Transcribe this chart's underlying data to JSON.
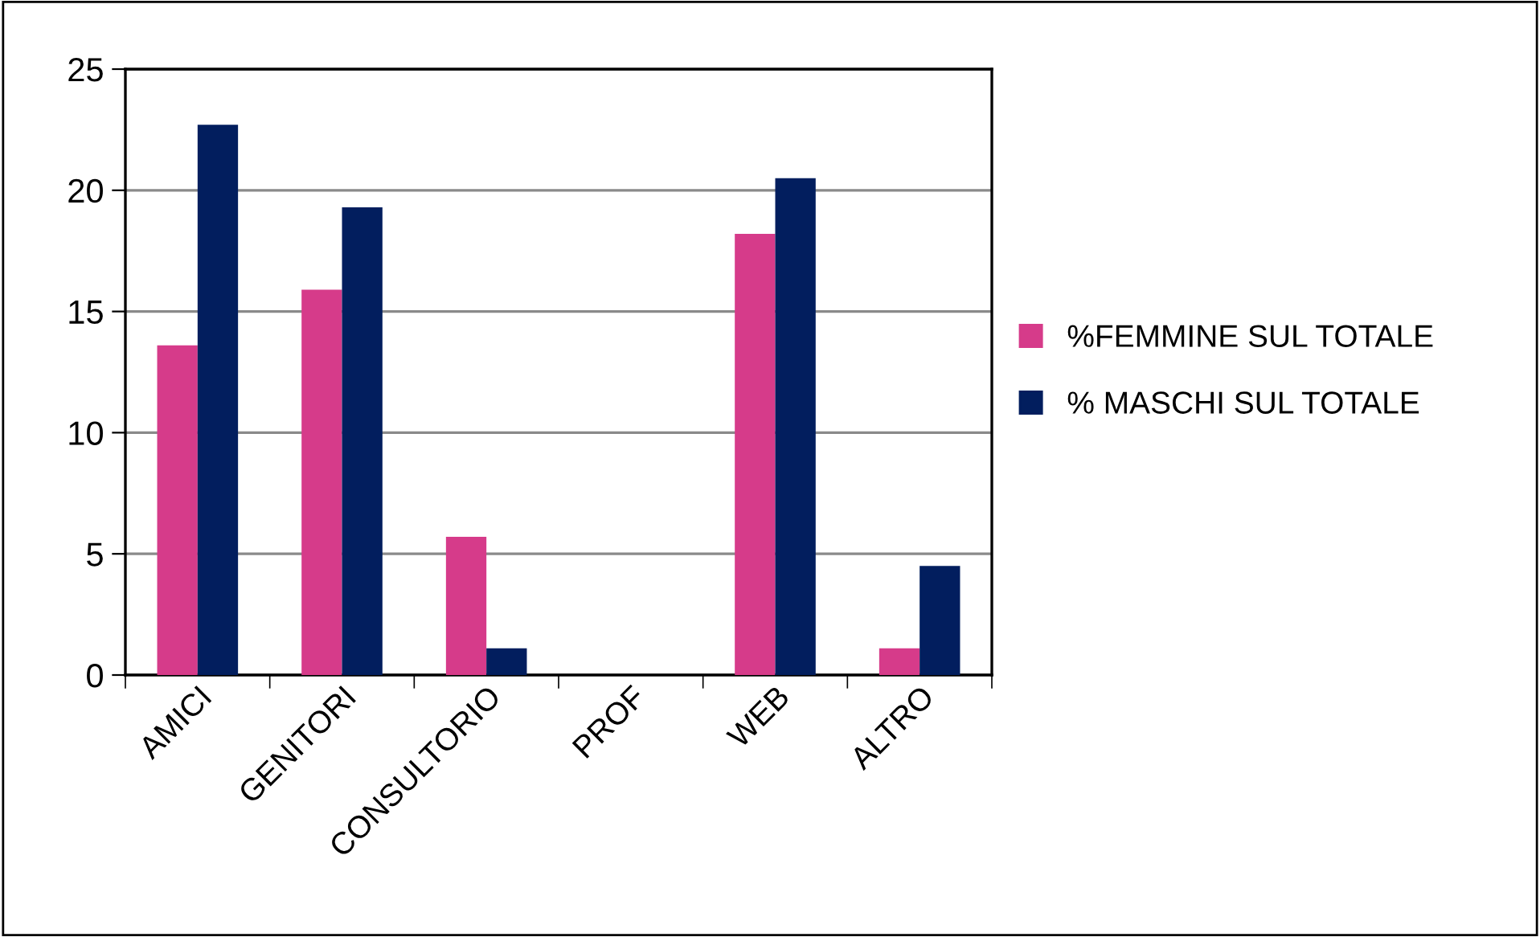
{
  "chart_data": {
    "type": "bar",
    "categories": [
      "AMICI",
      "GENITORI",
      "CONSULTORIO",
      "PROF",
      "WEB",
      "ALTRO"
    ],
    "series": [
      {
        "name": "%FEMMINE SUL TOTALE",
        "color": "#d63b8a",
        "values": [
          13.6,
          15.9,
          5.7,
          0,
          18.2,
          1.1
        ]
      },
      {
        "name": "% MASCHI SUL TOTALE",
        "color": "#021e5e",
        "values": [
          22.7,
          19.3,
          1.1,
          0,
          20.5,
          4.5
        ]
      }
    ],
    "ylim": [
      0,
      25
    ],
    "yticks": [
      0,
      5,
      10,
      15,
      20,
      25
    ],
    "grid": "y",
    "legend": "right"
  }
}
